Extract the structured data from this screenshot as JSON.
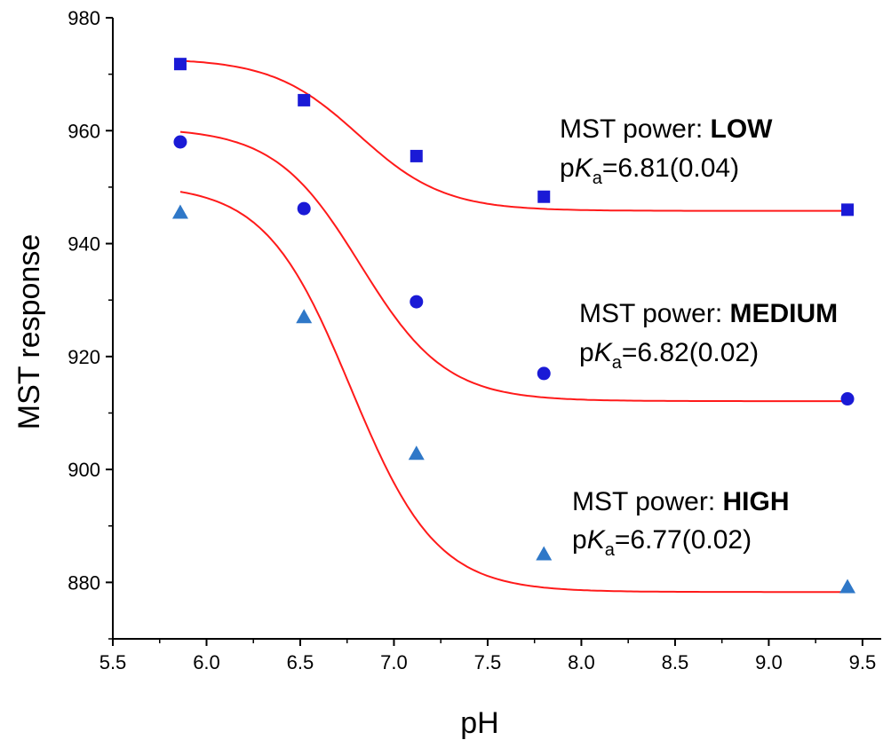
{
  "chart_data": {
    "type": "scatter",
    "xlabel": "pH",
    "ylabel": "MST response",
    "xlim": [
      5.5,
      9.6
    ],
    "ylim": [
      870,
      980
    ],
    "xticks": [
      "5.5",
      "6.0",
      "6.5",
      "7.0",
      "7.5",
      "8.0",
      "8.5",
      "9.0",
      "9.5"
    ],
    "yticks": [
      "880",
      "900",
      "920",
      "940",
      "960",
      "980"
    ],
    "grid": false,
    "colors": {
      "marker": "#1a1ad6",
      "marker_high": "#2f78c8",
      "fit": "#ff1a1a"
    },
    "series": [
      {
        "marker": "square",
        "x": [
          5.86,
          6.52,
          7.12,
          7.8,
          9.42
        ],
        "y": [
          971.8,
          965.4,
          955.5,
          948.3,
          946.0
        ],
        "fit": {
          "top": 972.8,
          "bottom": 945.8,
          "pka": 6.81
        },
        "annotation": {
          "prefix": "MST power: ",
          "level": "LOW",
          "pka_p": "p",
          "pka_K": "K",
          "pka_sub": "a",
          "pka_value": "=6.81(0.04)"
        }
      },
      {
        "marker": "circle",
        "x": [
          5.86,
          6.52,
          7.12,
          7.8,
          9.42
        ],
        "y": [
          958.0,
          946.2,
          929.7,
          917.0,
          912.5
        ],
        "fit": {
          "top": 960.5,
          "bottom": 912.1,
          "pka": 6.82
        },
        "annotation": {
          "prefix": "MST power: ",
          "level": "MEDIUM",
          "pka_p": "p",
          "pka_K": "K",
          "pka_sub": "a",
          "pka_value": "=6.82(0.02)"
        }
      },
      {
        "marker": "triangle",
        "x": [
          5.86,
          6.52,
          7.12,
          7.8,
          9.42
        ],
        "y": [
          945.5,
          927.0,
          902.8,
          885.0,
          879.2
        ],
        "fit": {
          "top": 950.5,
          "bottom": 878.3,
          "pka": 6.77
        },
        "annotation": {
          "prefix": "MST power: ",
          "level": "HIGH",
          "pka_p": "p",
          "pka_K": "K",
          "pka_sub": "a",
          "pka_value": "=6.77(0.02)"
        }
      }
    ]
  }
}
